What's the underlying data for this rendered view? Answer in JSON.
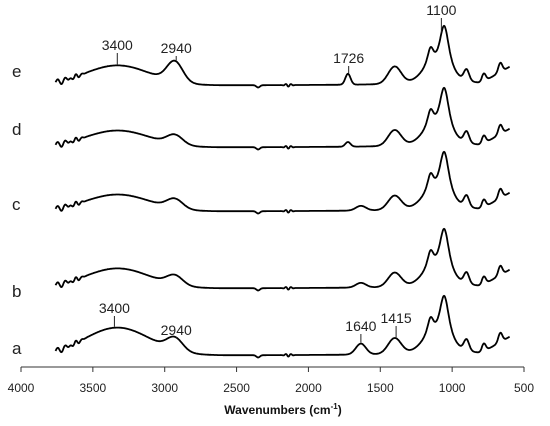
{
  "chart_data": {
    "type": "line",
    "xlabel": "Wavenumbers (cm",
    "xlabel_sup": "-1",
    "xlabel_close": ")",
    "xlim": [
      4000,
      500
    ],
    "x_ticks": [
      4000,
      3500,
      3000,
      2500,
      2000,
      1500,
      1000,
      500
    ],
    "x_tick_labels": [
      "4000",
      "3500",
      "3000",
      "2500",
      "2000",
      "1500",
      "1000",
      "500"
    ],
    "grid": false,
    "series": [
      {
        "name": "a",
        "features": {
          "broad_3400": 36,
          "ch_2940": 16,
          "band_1726": 0,
          "band_1640": 14,
          "band_1415": 20,
          "main_1100": 80
        }
      },
      {
        "name": "b",
        "features": {
          "broad_3400": 26,
          "ch_2940": 12,
          "band_1726": 0,
          "band_1640": 6,
          "band_1415": 18,
          "main_1100": 80
        }
      },
      {
        "name": "c",
        "features": {
          "broad_3400": 22,
          "ch_2940": 12,
          "band_1726": 0,
          "band_1640": 6,
          "band_1415": 18,
          "main_1100": 80
        }
      },
      {
        "name": "d",
        "features": {
          "broad_3400": 22,
          "ch_2940": 12,
          "band_1726": 6,
          "band_1640": 0,
          "band_1415": 20,
          "main_1100": 80
        }
      },
      {
        "name": "e",
        "features": {
          "broad_3400": 26,
          "ch_2940": 26,
          "band_1726": 14,
          "band_1640": 0,
          "band_1415": 22,
          "main_1100": 80
        }
      }
    ],
    "annotations": [
      {
        "label": "1100",
        "x": 1075,
        "series": "e"
      },
      {
        "label": "3400",
        "x": 3330,
        "series": "e"
      },
      {
        "label": "2940",
        "x": 2920,
        "series": "e"
      },
      {
        "label": "1726",
        "x": 1720,
        "series": "e"
      },
      {
        "label": "3400",
        "x": 3350,
        "series": "a"
      },
      {
        "label": "2940",
        "x": 2920,
        "series": "a"
      },
      {
        "label": "1640",
        "x": 1635,
        "series": "a"
      },
      {
        "label": "1415",
        "x": 1390,
        "series": "a"
      }
    ]
  }
}
